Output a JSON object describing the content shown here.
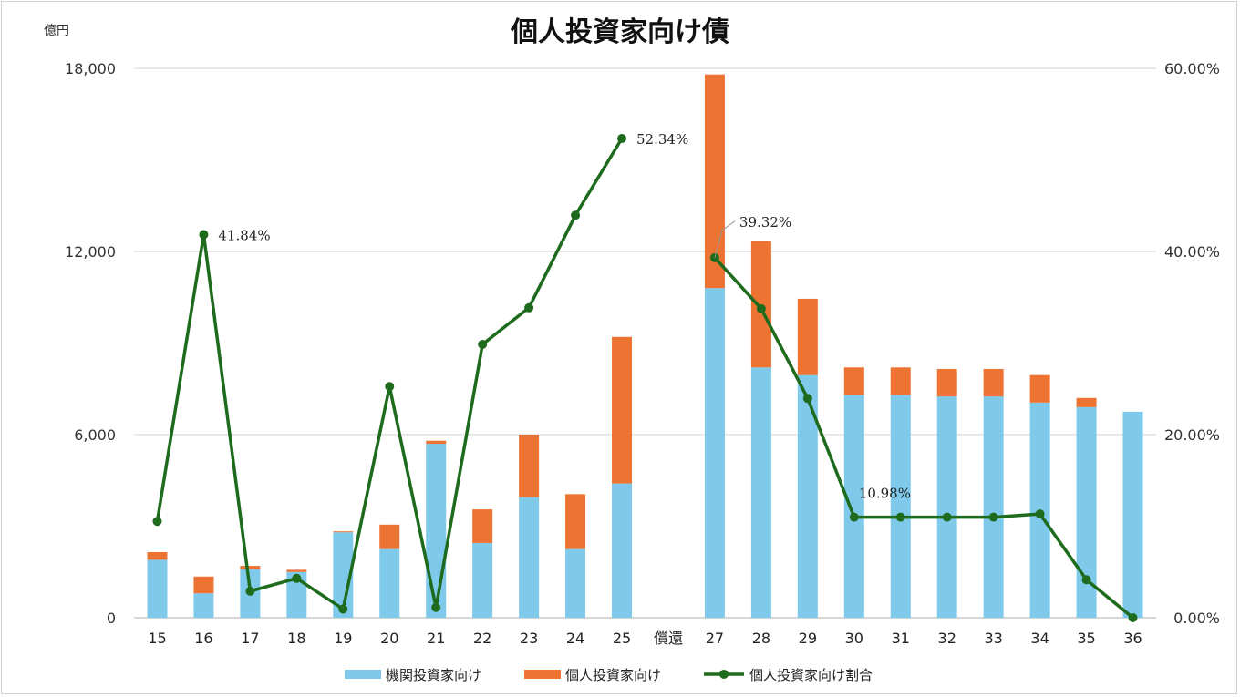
{
  "chart_data": {
    "type": "bar",
    "title": "個人投資家向け債",
    "y_unit": "億円",
    "ylim": [
      0,
      18000
    ],
    "y_ticks": [
      "0",
      "6,000",
      "12,000",
      "18,000"
    ],
    "y2lim": [
      0,
      0.6
    ],
    "y2_ticks": [
      "0.00%",
      "20.00%",
      "40.00%",
      "60.00%"
    ],
    "categories": [
      "15",
      "16",
      "17",
      "18",
      "19",
      "20",
      "21",
      "22",
      "23",
      "24",
      "25",
      "償還",
      "27",
      "28",
      "29",
      "30",
      "31",
      "32",
      "33",
      "34",
      "35",
      "36"
    ],
    "series": [
      {
        "name": "機関投資家向け",
        "kind": "bar-stack",
        "color": "#7FC9EB",
        "values": [
          1900,
          800,
          1600,
          1500,
          2800,
          2250,
          5700,
          2450,
          3950,
          2250,
          4400,
          null,
          10800,
          8200,
          7950,
          7300,
          7300,
          7250,
          7250,
          7050,
          6900,
          6750
        ]
      },
      {
        "name": "個人投資家向け",
        "kind": "bar-stack",
        "color": "#ED7333",
        "values": [
          250,
          550,
          100,
          70,
          30,
          800,
          100,
          1100,
          2050,
          1800,
          4800,
          null,
          7000,
          4150,
          2500,
          900,
          900,
          900,
          900,
          900,
          300,
          0
        ]
      },
      {
        "name": "個人投資家向け割合",
        "kind": "line",
        "axis": "right",
        "color": "#1E6B1E",
        "values": [
          0.1052,
          0.4184,
          0.029,
          0.043,
          0.0095,
          0.2525,
          0.0112,
          0.2985,
          0.3385,
          0.4395,
          0.5234,
          null,
          0.3932,
          0.3375,
          0.2395,
          0.1098,
          0.1098,
          0.1098,
          0.1098,
          0.1133,
          0.0415,
          0
        ]
      }
    ],
    "data_labels": [
      {
        "category": "16",
        "text": "41.84%"
      },
      {
        "category": "25",
        "text": "52.34%"
      },
      {
        "category": "27",
        "text": "39.32%"
      },
      {
        "category": "30",
        "text": "10.98%"
      }
    ],
    "grid": true,
    "legend": "bottom"
  }
}
